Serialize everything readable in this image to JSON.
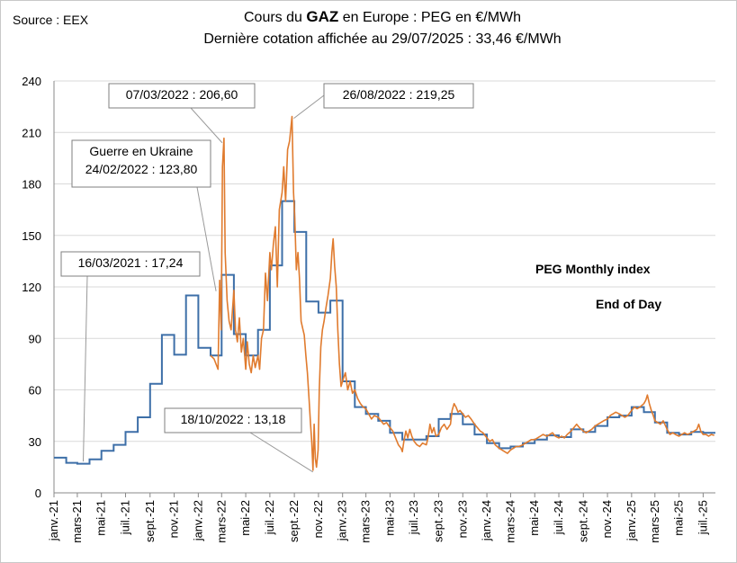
{
  "source": "Source : EEX",
  "title": {
    "prefix": "Cours du ",
    "bold": "GAZ",
    "suffix": " en Europe : PEG en €/MWh",
    "line2": "Dernière cotation affichée au 29/07/2025 : 33,46 €/MWh"
  },
  "chart_data": {
    "type": "line",
    "ylim": [
      0,
      240
    ],
    "yticks": [
      0,
      30,
      60,
      90,
      120,
      150,
      180,
      210,
      240
    ],
    "x_start": "2021-01-01",
    "x_end": "2025-08-01",
    "x_tick_labels": [
      "janv.-21",
      "mars-21",
      "mai-21",
      "juil.-21",
      "sept.-21",
      "nov.-21",
      "janv.-22",
      "mars-22",
      "mai-22",
      "juil.-22",
      "sept.-22",
      "nov.-22",
      "janv.-23",
      "mars-23",
      "mai-23",
      "juil.-23",
      "sept.-23",
      "nov.-23",
      "janv.-24",
      "mars-24",
      "mai-24",
      "juil.-24",
      "sept.-24",
      "nov.-24",
      "janv.-25",
      "mars-25",
      "mai-25",
      "juil.-25"
    ],
    "x_tick_dates": [
      "2021-01-01",
      "2021-03-01",
      "2021-05-01",
      "2021-07-01",
      "2021-09-01",
      "2021-11-01",
      "2022-01-01",
      "2022-03-01",
      "2022-05-01",
      "2022-07-01",
      "2022-09-01",
      "2022-11-01",
      "2023-01-01",
      "2023-03-01",
      "2023-05-01",
      "2023-07-01",
      "2023-09-01",
      "2023-11-01",
      "2024-01-01",
      "2024-03-01",
      "2024-05-01",
      "2024-07-01",
      "2024-09-01",
      "2024-11-01",
      "2025-01-01",
      "2025-03-01",
      "2025-05-01",
      "2025-07-01"
    ],
    "grid": true,
    "legend_position": "right",
    "series": [
      {
        "name": "PEG Monthly index",
        "color": "#3d6fa8",
        "step": true,
        "months": [
          "2021-01",
          "2021-02",
          "2021-03",
          "2021-04",
          "2021-05",
          "2021-06",
          "2021-07",
          "2021-08",
          "2021-09",
          "2021-10",
          "2021-11",
          "2021-12",
          "2022-01",
          "2022-02",
          "2022-03",
          "2022-04",
          "2022-05",
          "2022-06",
          "2022-07",
          "2022-08",
          "2022-09",
          "2022-10",
          "2022-11",
          "2022-12",
          "2023-01",
          "2023-02",
          "2023-03",
          "2023-04",
          "2023-05",
          "2023-06",
          "2023-07",
          "2023-08",
          "2023-09",
          "2023-10",
          "2023-11",
          "2023-12",
          "2024-01",
          "2024-02",
          "2024-03",
          "2024-04",
          "2024-05",
          "2024-06",
          "2024-07",
          "2024-08",
          "2024-09",
          "2024-10",
          "2024-11",
          "2024-12",
          "2025-01",
          "2025-02",
          "2025-03",
          "2025-04",
          "2025-05",
          "2025-06",
          "2025-07"
        ],
        "values": [
          20.5,
          17.5,
          17,
          19.5,
          24.5,
          28,
          35.5,
          44,
          63.5,
          92,
          80.5,
          115,
          84.5,
          80,
          127,
          92.5,
          80,
          95,
          132.5,
          170,
          152,
          111.5,
          105,
          112,
          65,
          50,
          46,
          42,
          35,
          31,
          31,
          33,
          43,
          46,
          40,
          34,
          29,
          26,
          27,
          29,
          31,
          33.5,
          32.5,
          37,
          35.5,
          39,
          44,
          45,
          50,
          47,
          41,
          35,
          34,
          35.5,
          35
        ]
      },
      {
        "name": "End of Day",
        "color": "#e07b2e",
        "points": [
          [
            "2022-02-01",
            80
          ],
          [
            "2022-02-10",
            78
          ],
          [
            "2022-02-20",
            72
          ],
          [
            "2022-02-24",
            123.8
          ],
          [
            "2022-02-28",
            95
          ],
          [
            "2022-03-03",
            190
          ],
          [
            "2022-03-07",
            206.6
          ],
          [
            "2022-03-10",
            140
          ],
          [
            "2022-03-15",
            112
          ],
          [
            "2022-03-20",
            100
          ],
          [
            "2022-03-25",
            95
          ],
          [
            "2022-04-01",
            118
          ],
          [
            "2022-04-05",
            95
          ],
          [
            "2022-04-10",
            88
          ],
          [
            "2022-04-15",
            102
          ],
          [
            "2022-04-20",
            82
          ],
          [
            "2022-04-25",
            90
          ],
          [
            "2022-05-01",
            72
          ],
          [
            "2022-05-05",
            88
          ],
          [
            "2022-05-10",
            75
          ],
          [
            "2022-05-15",
            70
          ],
          [
            "2022-05-20",
            80
          ],
          [
            "2022-05-25",
            73
          ],
          [
            "2022-06-01",
            80
          ],
          [
            "2022-06-05",
            72
          ],
          [
            "2022-06-10",
            90
          ],
          [
            "2022-06-15",
            95
          ],
          [
            "2022-06-20",
            128
          ],
          [
            "2022-06-25",
            112
          ],
          [
            "2022-07-01",
            140
          ],
          [
            "2022-07-05",
            130
          ],
          [
            "2022-07-10",
            145
          ],
          [
            "2022-07-15",
            155
          ],
          [
            "2022-07-20",
            120
          ],
          [
            "2022-07-25",
            165
          ],
          [
            "2022-08-01",
            175
          ],
          [
            "2022-08-05",
            190
          ],
          [
            "2022-08-10",
            170
          ],
          [
            "2022-08-15",
            200
          ],
          [
            "2022-08-20",
            205
          ],
          [
            "2022-08-26",
            219.25
          ],
          [
            "2022-08-30",
            175
          ],
          [
            "2022-09-02",
            160
          ],
          [
            "2022-09-06",
            130
          ],
          [
            "2022-09-10",
            140
          ],
          [
            "2022-09-14",
            125
          ],
          [
            "2022-09-18",
            100
          ],
          [
            "2022-09-22",
            96
          ],
          [
            "2022-09-26",
            92
          ],
          [
            "2022-09-30",
            80
          ],
          [
            "2022-10-04",
            70
          ],
          [
            "2022-10-08",
            55
          ],
          [
            "2022-10-12",
            40
          ],
          [
            "2022-10-15",
            30
          ],
          [
            "2022-10-18",
            13.18
          ],
          [
            "2022-10-21",
            40
          ],
          [
            "2022-10-24",
            20
          ],
          [
            "2022-10-27",
            15
          ],
          [
            "2022-10-31",
            25
          ],
          [
            "2022-11-03",
            60
          ],
          [
            "2022-11-07",
            85
          ],
          [
            "2022-11-11",
            95
          ],
          [
            "2022-11-15",
            100
          ],
          [
            "2022-11-20",
            108
          ],
          [
            "2022-11-25",
            115
          ],
          [
            "2022-12-01",
            125
          ],
          [
            "2022-12-05",
            140
          ],
          [
            "2022-12-08",
            148
          ],
          [
            "2022-12-12",
            132
          ],
          [
            "2022-12-16",
            120
          ],
          [
            "2022-12-20",
            95
          ],
          [
            "2022-12-24",
            75
          ],
          [
            "2022-12-28",
            62
          ],
          [
            "2023-01-02",
            66
          ],
          [
            "2023-01-08",
            70
          ],
          [
            "2023-01-14",
            60
          ],
          [
            "2023-01-20",
            65
          ],
          [
            "2023-01-26",
            58
          ],
          [
            "2023-02-01",
            60
          ],
          [
            "2023-02-08",
            55
          ],
          [
            "2023-02-15",
            52
          ],
          [
            "2023-02-22",
            50
          ],
          [
            "2023-03-01",
            49
          ],
          [
            "2023-03-08",
            46
          ],
          [
            "2023-03-15",
            43
          ],
          [
            "2023-03-22",
            45
          ],
          [
            "2023-04-01",
            44
          ],
          [
            "2023-04-08",
            42
          ],
          [
            "2023-04-15",
            40
          ],
          [
            "2023-04-22",
            41
          ],
          [
            "2023-05-01",
            38
          ],
          [
            "2023-05-08",
            36
          ],
          [
            "2023-05-15",
            32
          ],
          [
            "2023-05-22",
            28
          ],
          [
            "2023-05-29",
            26
          ],
          [
            "2023-06-01",
            24
          ],
          [
            "2023-06-05",
            30
          ],
          [
            "2023-06-10",
            36
          ],
          [
            "2023-06-15",
            32
          ],
          [
            "2023-06-20",
            37
          ],
          [
            "2023-06-25",
            33
          ],
          [
            "2023-07-01",
            30
          ],
          [
            "2023-07-08",
            28
          ],
          [
            "2023-07-15",
            27
          ],
          [
            "2023-07-22",
            29
          ],
          [
            "2023-08-01",
            28
          ],
          [
            "2023-08-05",
            32
          ],
          [
            "2023-08-10",
            40
          ],
          [
            "2023-08-15",
            35
          ],
          [
            "2023-08-20",
            38
          ],
          [
            "2023-08-25",
            33
          ],
          [
            "2023-09-01",
            34
          ],
          [
            "2023-09-08",
            38
          ],
          [
            "2023-09-15",
            40
          ],
          [
            "2023-09-22",
            37
          ],
          [
            "2023-10-01",
            40
          ],
          [
            "2023-10-05",
            48
          ],
          [
            "2023-10-10",
            52
          ],
          [
            "2023-10-15",
            50
          ],
          [
            "2023-10-20",
            47
          ],
          [
            "2023-10-25",
            48
          ],
          [
            "2023-11-01",
            46
          ],
          [
            "2023-11-08",
            44
          ],
          [
            "2023-11-15",
            45
          ],
          [
            "2023-11-22",
            43
          ],
          [
            "2023-12-01",
            40
          ],
          [
            "2023-12-08",
            38
          ],
          [
            "2023-12-15",
            36
          ],
          [
            "2023-12-22",
            35
          ],
          [
            "2024-01-01",
            32
          ],
          [
            "2024-01-08",
            30
          ],
          [
            "2024-01-15",
            31
          ],
          [
            "2024-01-22",
            28
          ],
          [
            "2024-02-01",
            26
          ],
          [
            "2024-02-08",
            25
          ],
          [
            "2024-02-15",
            24
          ],
          [
            "2024-02-22",
            23
          ],
          [
            "2024-03-01",
            25
          ],
          [
            "2024-03-08",
            26
          ],
          [
            "2024-03-15",
            27
          ],
          [
            "2024-03-22",
            27
          ],
          [
            "2024-04-01",
            28
          ],
          [
            "2024-04-08",
            29
          ],
          [
            "2024-04-15",
            30
          ],
          [
            "2024-04-22",
            31
          ],
          [
            "2024-05-01",
            31
          ],
          [
            "2024-05-08",
            32
          ],
          [
            "2024-05-15",
            33
          ],
          [
            "2024-05-22",
            34
          ],
          [
            "2024-06-01",
            33
          ],
          [
            "2024-06-08",
            34
          ],
          [
            "2024-06-15",
            35
          ],
          [
            "2024-06-22",
            33
          ],
          [
            "2024-07-01",
            32
          ],
          [
            "2024-07-08",
            33
          ],
          [
            "2024-07-15",
            32
          ],
          [
            "2024-07-22",
            34
          ],
          [
            "2024-08-01",
            36
          ],
          [
            "2024-08-08",
            38
          ],
          [
            "2024-08-15",
            40
          ],
          [
            "2024-08-22",
            38
          ],
          [
            "2024-09-01",
            36
          ],
          [
            "2024-09-08",
            35
          ],
          [
            "2024-09-15",
            36
          ],
          [
            "2024-09-22",
            37
          ],
          [
            "2024-10-01",
            39
          ],
          [
            "2024-10-08",
            40
          ],
          [
            "2024-10-15",
            41
          ],
          [
            "2024-10-22",
            42
          ],
          [
            "2024-11-01",
            43
          ],
          [
            "2024-11-08",
            45
          ],
          [
            "2024-11-15",
            46
          ],
          [
            "2024-11-22",
            47
          ],
          [
            "2024-12-01",
            46
          ],
          [
            "2024-12-08",
            45
          ],
          [
            "2024-12-15",
            44
          ],
          [
            "2024-12-22",
            45
          ],
          [
            "2025-01-01",
            48
          ],
          [
            "2025-01-08",
            50
          ],
          [
            "2025-01-15",
            49
          ],
          [
            "2025-01-22",
            50
          ],
          [
            "2025-02-01",
            52
          ],
          [
            "2025-02-06",
            54
          ],
          [
            "2025-02-10",
            57
          ],
          [
            "2025-02-15",
            52
          ],
          [
            "2025-02-20",
            48
          ],
          [
            "2025-02-25",
            45
          ],
          [
            "2025-03-01",
            42
          ],
          [
            "2025-03-08",
            41
          ],
          [
            "2025-03-15",
            40
          ],
          [
            "2025-03-22",
            42
          ],
          [
            "2025-04-01",
            37
          ],
          [
            "2025-04-08",
            34
          ],
          [
            "2025-04-15",
            35
          ],
          [
            "2025-04-22",
            34
          ],
          [
            "2025-05-01",
            33
          ],
          [
            "2025-05-08",
            34
          ],
          [
            "2025-05-15",
            35
          ],
          [
            "2025-05-22",
            34
          ],
          [
            "2025-06-01",
            35
          ],
          [
            "2025-06-08",
            36
          ],
          [
            "2025-06-15",
            37
          ],
          [
            "2025-06-20",
            40
          ],
          [
            "2025-06-25",
            36
          ],
          [
            "2025-07-01",
            34
          ],
          [
            "2025-07-08",
            34
          ],
          [
            "2025-07-15",
            33
          ],
          [
            "2025-07-22",
            34
          ],
          [
            "2025-07-29",
            33.46
          ]
        ]
      }
    ],
    "annotations": [
      {
        "label": "16/03/2021 : 17,24",
        "date": "2021-03-16",
        "value": 17.24
      },
      {
        "label": "07/03/2022 : 206,60",
        "date": "2022-03-07",
        "value": 206.6
      },
      {
        "label": "26/08/2022 : 219,25",
        "date": "2022-08-26",
        "value": 219.25
      },
      {
        "label_line1": "Guerre en Ukraine",
        "label_line2": "24/02/2022 : 123,80",
        "date": "2022-02-24",
        "value": 123.8
      },
      {
        "label": "18/10/2022 : 13,18",
        "date": "2022-10-18",
        "value": 13.18
      }
    ]
  }
}
